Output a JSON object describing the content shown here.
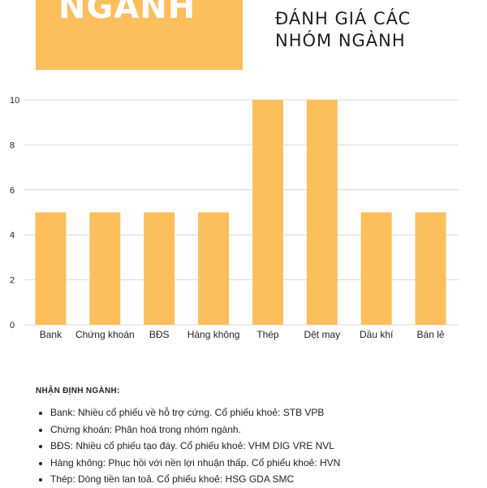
{
  "hero": {
    "text": "NGÀNH"
  },
  "title": "ĐÁNH GIÁ CÁC NHÓM NGÀNH",
  "colors": {
    "bar": "#fdbf5c",
    "hero_box": "#fdbf5c",
    "grid": "#d9d9d9"
  },
  "chart_data": {
    "type": "bar",
    "categories": [
      "Bank",
      "Chứng khoán",
      "BĐS",
      "Hàng không",
      "Thép",
      "Dệt may",
      "Dầu khí",
      "Bán lẻ"
    ],
    "values": [
      5,
      5,
      5,
      5,
      10,
      10,
      5,
      5
    ],
    "yticks": [
      0,
      2,
      4,
      6,
      8,
      10
    ],
    "ylim": [
      0,
      10
    ],
    "grid": true,
    "title": "",
    "xlabel": "",
    "ylabel": ""
  },
  "notes": {
    "heading": "NHẬN ĐỊNH NGÀNH:",
    "items": [
      "Bank: Nhiều cổ phiếu về hỗ trợ cứng. Cổ phiếu khoẻ: STB VPB",
      "Chứng khoán: Phân hoá trong nhóm ngành.",
      "BĐS: Nhiều cổ phiếu tạo đáy. Cổ phiếu khoẻ: VHM DIG VRE NVL",
      "Hàng không: Phục hồi với nền lợi nhuận thấp. Cổ phiếu khoẻ: HVN",
      "Thép: Dòng tiền lan toả. Cổ phiếu khoẻ: HSG GDA SMC"
    ]
  }
}
